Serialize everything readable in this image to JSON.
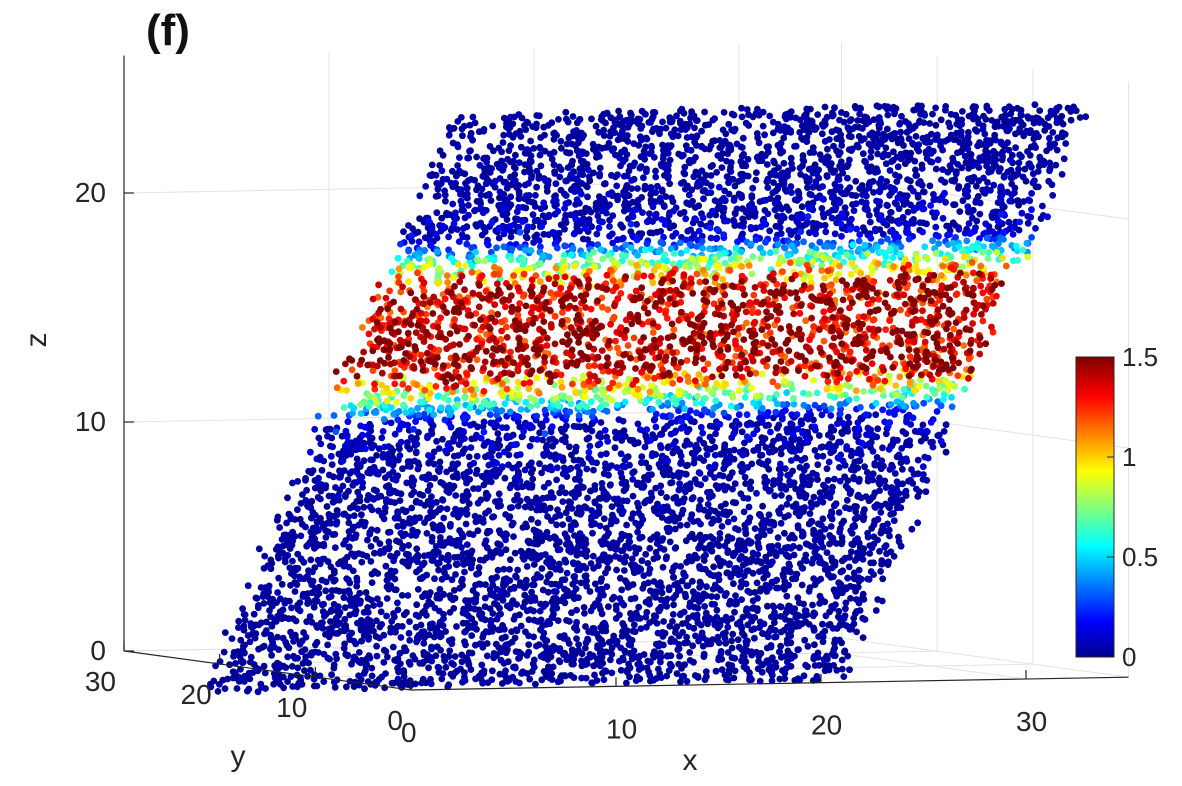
{
  "panel_label": "(f)",
  "chart_data": {
    "type": "scatter",
    "projection": "3d",
    "xlabel": "x",
    "ylabel": "y",
    "zlabel": "z",
    "xlim": [
      0,
      35
    ],
    "ylim": [
      0,
      30
    ],
    "zlim": [
      0,
      26
    ],
    "x_ticks": [
      {
        "value": 0,
        "label": "0"
      },
      {
        "value": 10,
        "label": "10"
      },
      {
        "value": 20,
        "label": "20"
      },
      {
        "value": 30,
        "label": "30"
      }
    ],
    "y_ticks": [
      {
        "value": 0,
        "label": "0"
      },
      {
        "value": 10,
        "label": "10"
      },
      {
        "value": 20,
        "label": "20"
      },
      {
        "value": 30,
        "label": "30"
      }
    ],
    "z_ticks": [
      {
        "value": 0,
        "label": "0"
      },
      {
        "value": 10,
        "label": "10"
      },
      {
        "value": 20,
        "label": "20"
      }
    ],
    "grid": true,
    "colormap": "jet",
    "colormap_stops": [
      "#00008f",
      "#0000ff",
      "#00ffff",
      "#ffff00",
      "#ff0000",
      "#800000"
    ],
    "colorbar": {
      "placement": "right",
      "range": [
        0,
        1.5
      ],
      "ticks": [
        {
          "value": 0,
          "label": "0"
        },
        {
          "value": 0.5,
          "label": "0.5"
        },
        {
          "value": 1,
          "label": "1"
        },
        {
          "value": 1.5,
          "label": "1.5"
        }
      ]
    },
    "description_values": {
      "particle_z_range": [
        0,
        25
      ],
      "high_value_band_z": [
        12,
        19
      ],
      "band_peak_z": 14.5,
      "band_peak_value": 1.5,
      "background_value": 0
    }
  }
}
